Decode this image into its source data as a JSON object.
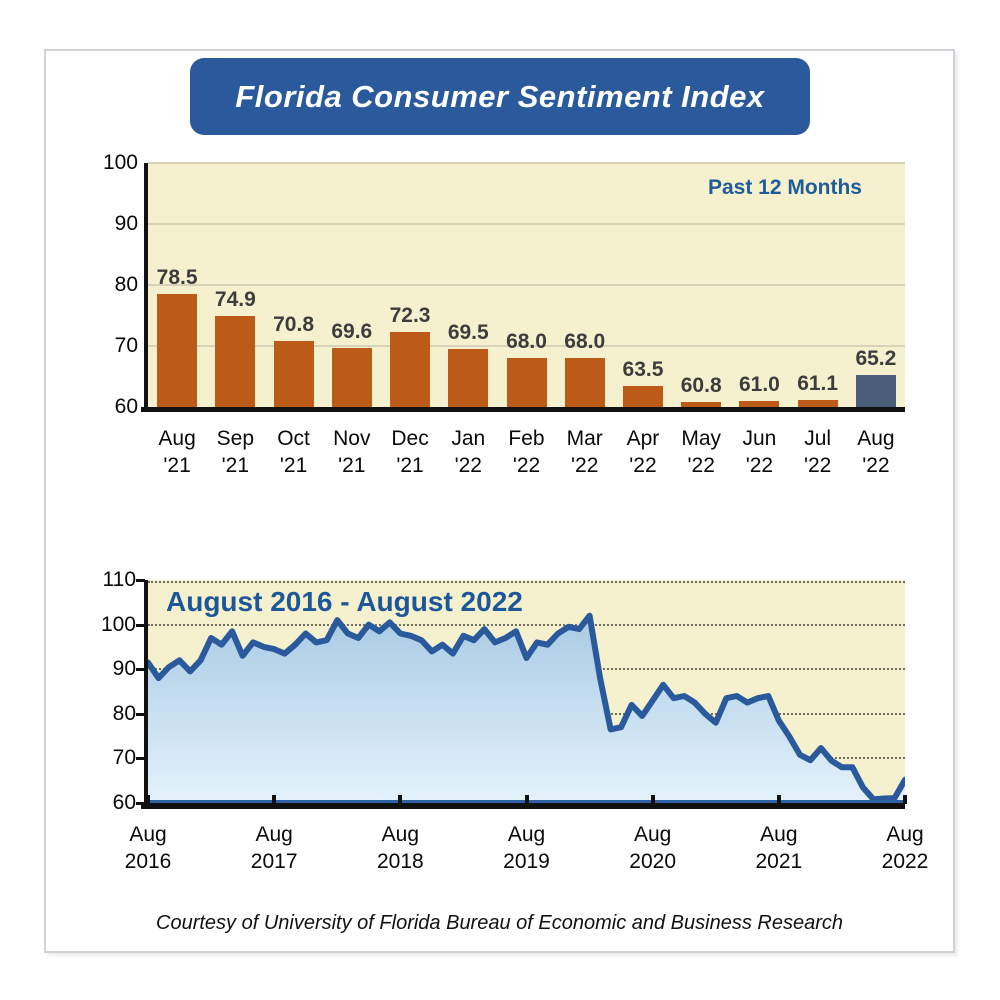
{
  "page": {
    "banner_title": "Florida Consumer Sentiment Index",
    "footer": "Courtesy of University of Florida Bureau of Economic and Business Research",
    "banner_color": "#2a5a9c"
  },
  "chart_data": [
    {
      "type": "bar",
      "title": "Past 12 Months",
      "categories": [
        {
          "month": "Aug",
          "year": "'21"
        },
        {
          "month": "Sep",
          "year": "'21"
        },
        {
          "month": "Oct",
          "year": "'21"
        },
        {
          "month": "Nov",
          "year": "'21"
        },
        {
          "month": "Dec",
          "year": "'21"
        },
        {
          "month": "Jan",
          "year": "'22"
        },
        {
          "month": "Feb",
          "year": "'22"
        },
        {
          "month": "Mar",
          "year": "'22"
        },
        {
          "month": "Apr",
          "year": "'22"
        },
        {
          "month": "May",
          "year": "'22"
        },
        {
          "month": "Jun",
          "year": "'22"
        },
        {
          "month": "Jul",
          "year": "'22"
        },
        {
          "month": "Aug",
          "year": "'22"
        }
      ],
      "values": [
        78.5,
        74.9,
        70.8,
        69.6,
        72.3,
        69.5,
        68.0,
        68.0,
        63.5,
        60.8,
        61.0,
        61.1,
        65.2
      ],
      "ylim": [
        60,
        100
      ],
      "yticks": [
        60,
        70,
        80,
        90,
        100
      ],
      "grid": "solid",
      "bar_color": "#bc5a17",
      "highlight_index": 12,
      "highlight_color": "#4a5e7c",
      "plot_bg": "#f5f1cf",
      "value_label_color": "#3d3d3d",
      "annotation_color": "#1f5c99"
    },
    {
      "type": "area",
      "title": "August 2016 - August 2022",
      "frequency": "monthly",
      "x_start": "Aug 2016",
      "x_end": "Aug 2022",
      "x_tick_labels": [
        {
          "month": "Aug",
          "year": "2016"
        },
        {
          "month": "Aug",
          "year": "2017"
        },
        {
          "month": "Aug",
          "year": "2018"
        },
        {
          "month": "Aug",
          "year": "2019"
        },
        {
          "month": "Aug",
          "year": "2020"
        },
        {
          "month": "Aug",
          "year": "2021"
        },
        {
          "month": "Aug",
          "year": "2022"
        }
      ],
      "values": [
        91.5,
        88.0,
        90.5,
        92.0,
        89.5,
        92.0,
        97.0,
        95.5,
        98.5,
        93.0,
        96.0,
        95.0,
        94.5,
        93.5,
        95.5,
        98.0,
        96.0,
        96.5,
        101.0,
        98.0,
        97.0,
        100.0,
        98.5,
        100.5,
        98.0,
        97.5,
        96.5,
        94.0,
        95.5,
        93.5,
        97.5,
        96.5,
        99.0,
        96.0,
        97.0,
        98.5,
        92.5,
        96.0,
        95.5,
        98.0,
        99.5,
        99.0,
        102.0,
        88.0,
        76.5,
        77.0,
        82.0,
        79.5,
        83.0,
        86.5,
        83.5,
        84.0,
        82.5,
        80.0,
        78.0,
        83.5,
        84.0,
        82.5,
        83.5,
        84.0,
        78.5,
        74.9,
        70.8,
        69.6,
        72.3,
        69.5,
        68.0,
        68.0,
        63.5,
        60.8,
        61.0,
        61.1,
        65.2
      ],
      "ylim": [
        60,
        110
      ],
      "yticks": [
        60,
        70,
        80,
        90,
        100,
        110
      ],
      "grid": "dotted",
      "line_color": "#2a5a9c",
      "fill_top": "#a9cbe5",
      "fill_bottom": "#e4f2fb",
      "plot_bg": "#f5f1cf",
      "title_color": "#1e5799"
    }
  ]
}
